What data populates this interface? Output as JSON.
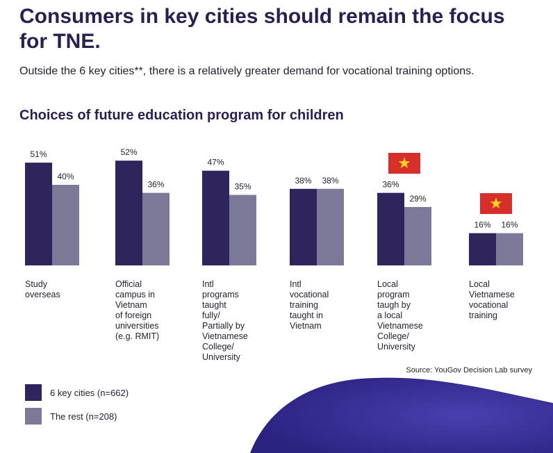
{
  "headline": "Consumers in key cities should remain the focus for TNE.",
  "subtitle": "Outside the 6 key cities**, there is a relatively greater demand for vocational training options.",
  "source": "Source: YouGov Decision Lab survey",
  "colors": {
    "key_cities": "#30245c",
    "rest": "#7b7898",
    "flag_red": "#d7302a",
    "flag_star": "#f7d21e",
    "title": "#2b1f4f"
  },
  "icons": {
    "flag": "vietnam-flag-icon"
  },
  "chart_data": {
    "type": "bar",
    "title": "Choices of future education program for children",
    "categories": [
      "Study\noverseas",
      "Official\ncampus in\nVietnam\nof foreign\nuniversities\n(e.g. RMIT)",
      "Intl\nprograms\ntaught\nfully/\nPartially by\nVietnamese\nCollege/\nUniversity",
      "Intl\nvocational\ntraining\ntaught in\nVietnam",
      "Local\nprogram\ntaugh by\na local\nVietnamese\nCollege/\nUniversity",
      "Local\nVietnamese\nvocational\ntraining"
    ],
    "series": [
      {
        "name": "6 key cities (n=662)",
        "values": [
          51,
          52,
          47,
          38,
          36,
          16
        ],
        "labels": [
          "51%",
          "52%",
          "47%",
          "38%",
          "36%",
          "16%"
        ]
      },
      {
        "name": "The rest (n=208)",
        "values": [
          40,
          36,
          35,
          38,
          29,
          16
        ],
        "labels": [
          "40%",
          "36%",
          "35%",
          "38%",
          "29%",
          "16%"
        ]
      }
    ],
    "flagged_categories": [
      4,
      5
    ],
    "ylim": [
      0,
      52
    ],
    "xlabel": "",
    "ylabel": "",
    "grid": false,
    "legend": "bottom-left"
  }
}
